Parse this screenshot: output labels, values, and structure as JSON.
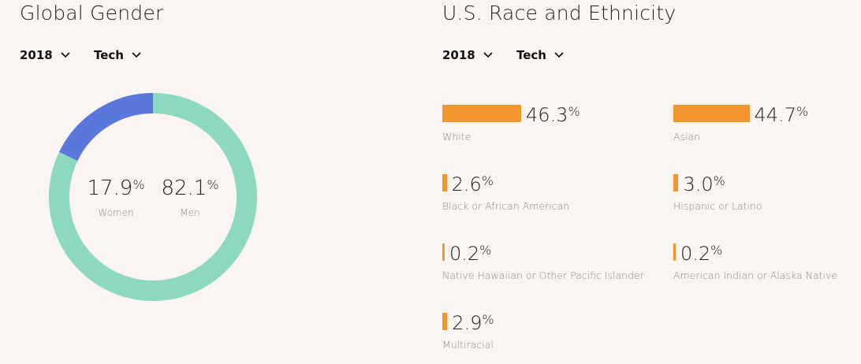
{
  "gender": {
    "title": "Global Gender",
    "year": "2018",
    "category": "Tech"
  },
  "race": {
    "title": "U.S. Race and Ethnicity",
    "year": "2018",
    "category": "Tech"
  },
  "colors": {
    "women": "#5a78dc",
    "men": "#8dd9bf",
    "bar": "#f39630"
  },
  "icons": {
    "dropdown": "chevron-down-icon"
  },
  "chart_data": [
    {
      "type": "pie",
      "title": "Global Gender",
      "categories": [
        "Women",
        "Men"
      ],
      "values": [
        17.9,
        82.1
      ],
      "labels": [
        "17.9",
        "82.1"
      ],
      "unit": "%"
    },
    {
      "type": "bar",
      "title": "U.S. Race and Ethnicity",
      "categories": [
        "White",
        "Asian",
        "Black or African American",
        "Hispanic or Latino",
        "Native Hawaiian or Other Pacific Islander",
        "American Indian or Alaska Native",
        "Multiracial"
      ],
      "values": [
        46.3,
        44.7,
        2.6,
        3.0,
        0.2,
        0.2,
        2.9
      ],
      "labels": [
        "46.3",
        "44.7",
        "2.6",
        "3.0",
        "0.2",
        "0.2",
        "2.9"
      ],
      "unit": "%"
    }
  ]
}
